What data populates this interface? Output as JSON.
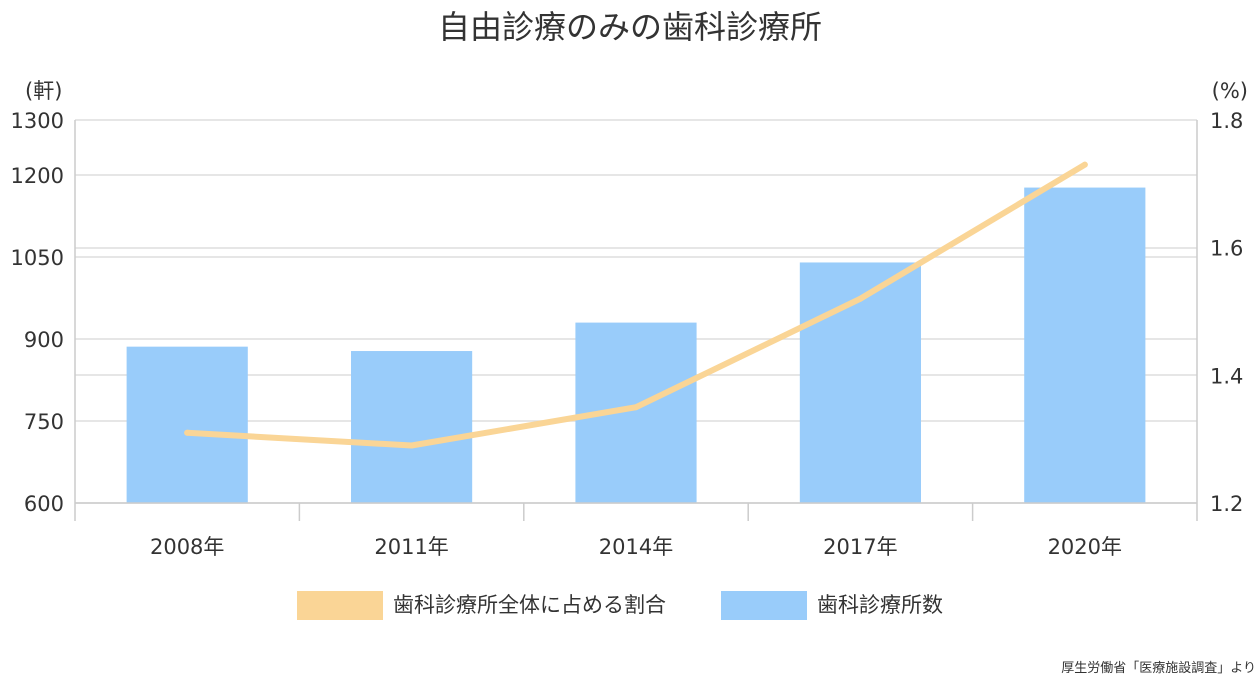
{
  "chart_data": {
    "type": "bar",
    "title": "自由診療のみの歯科診療所",
    "categories": [
      "2008年",
      "2011年",
      "2014年",
      "2017年",
      "2020年"
    ],
    "series": [
      {
        "name": "歯科診療所数",
        "type": "bar",
        "axis": "left",
        "color": "#99ccfa",
        "values": [
          886,
          878,
          930,
          1040,
          1177
        ]
      },
      {
        "name": "歯科診療所全体に占める割合",
        "type": "line",
        "axis": "right",
        "color": "#fad596",
        "values": [
          1.31,
          1.29,
          1.35,
          1.52,
          1.73
        ]
      }
    ],
    "y_left": {
      "unit": "(軒)",
      "ticks": [
        "1300",
        "1200",
        "1050",
        "900",
        "750",
        "600"
      ],
      "tick_values": [
        1300,
        1200,
        1050,
        900,
        750,
        600
      ],
      "ylim": [
        600,
        1300
      ]
    },
    "y_right": {
      "unit": "(%)",
      "ticks": [
        "1.8",
        "1.6",
        "1.4",
        "1.2"
      ],
      "tick_values": [
        1.8,
        1.6,
        1.4,
        1.2
      ],
      "ylim": [
        1.2,
        1.8
      ]
    },
    "legend": {
      "placement": "bottom-center",
      "items": [
        "歯科診療所全体に占める割合",
        "歯科診療所数"
      ]
    },
    "grid": true,
    "source": "厚生労働省「医療施設調査」より"
  }
}
